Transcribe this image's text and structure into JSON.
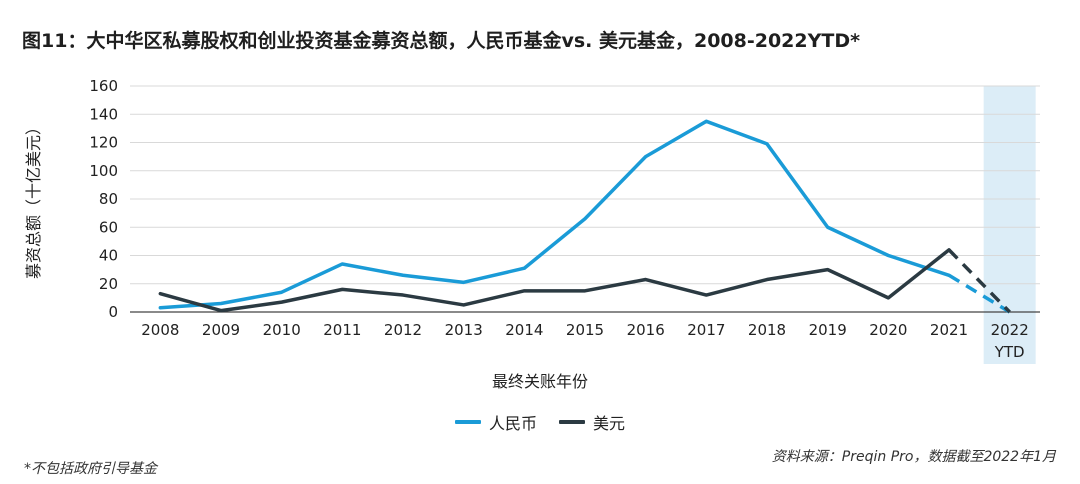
{
  "chart_data": {
    "type": "line",
    "title": "图11：大中华区私募股权和创业投资基金募资总额，人民币基金vs. 美元基金，2008-2022YTD*",
    "xlabel": "最终关账年份",
    "ylabel": "募资总额（十亿美元）",
    "categories": [
      "2008",
      "2009",
      "2010",
      "2011",
      "2012",
      "2013",
      "2014",
      "2015",
      "2016",
      "2017",
      "2018",
      "2019",
      "2020",
      "2021",
      "2022\nYTD"
    ],
    "highlight_category": "2022\nYTD",
    "dashed_from_index": 13,
    "ylim": [
      0,
      160
    ],
    "yticks": [
      0,
      20,
      40,
      60,
      80,
      100,
      120,
      140,
      160
    ],
    "grid": true,
    "series": [
      {
        "name": "人民币",
        "color": "#1a9bd7",
        "values": [
          3,
          6,
          14,
          34,
          26,
          21,
          31,
          66,
          110,
          135,
          119,
          60,
          40,
          26,
          0
        ]
      },
      {
        "name": "美元",
        "color": "#2b3a42",
        "values": [
          13,
          1,
          7,
          16,
          12,
          5,
          15,
          15,
          23,
          12,
          23,
          30,
          10,
          44,
          0
        ]
      }
    ]
  },
  "source_text": "资料来源：Preqin Pro，数据截至2022年1月",
  "footnote_text": "*不包括政府引导基金"
}
